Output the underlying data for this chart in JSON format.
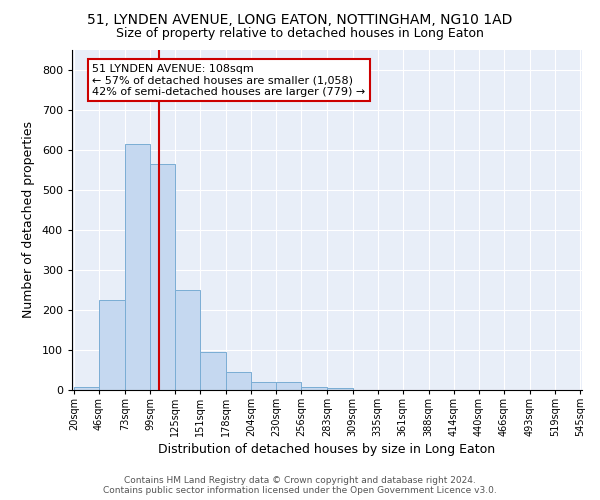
{
  "title": "51, LYNDEN AVENUE, LONG EATON, NOTTINGHAM, NG10 1AD",
  "subtitle": "Size of property relative to detached houses in Long Eaton",
  "xlabel": "Distribution of detached houses by size in Long Eaton",
  "ylabel": "Number of detached properties",
  "bar_color": "#c5d8f0",
  "bar_edge_color": "#7aadd4",
  "bg_color": "#e8eef8",
  "grid_color": "#ffffff",
  "annotation_box_color": "#ffffff",
  "annotation_border_color": "#cc0000",
  "vline_color": "#cc0000",
  "bin_edges": [
    20,
    46,
    73,
    99,
    125,
    151,
    178,
    204,
    230,
    256,
    283,
    309,
    335,
    361,
    388,
    414,
    440,
    466,
    493,
    519,
    545
  ],
  "bar_heights": [
    8,
    224,
    616,
    565,
    251,
    95,
    44,
    20,
    20,
    8,
    6,
    0,
    0,
    0,
    0,
    0,
    0,
    0,
    0,
    0
  ],
  "property_size": 108,
  "annotation_line1": "51 LYNDEN AVENUE: 108sqm",
  "annotation_line2": "← 57% of detached houses are smaller (1,058)",
  "annotation_line3": "42% of semi-detached houses are larger (779) →",
  "footer_line1": "Contains HM Land Registry data © Crown copyright and database right 2024.",
  "footer_line2": "Contains public sector information licensed under the Open Government Licence v3.0.",
  "ylim": [
    0,
    850
  ],
  "yticks": [
    0,
    100,
    200,
    300,
    400,
    500,
    600,
    700,
    800
  ],
  "fig_width": 6.0,
  "fig_height": 5.0,
  "dpi": 100
}
